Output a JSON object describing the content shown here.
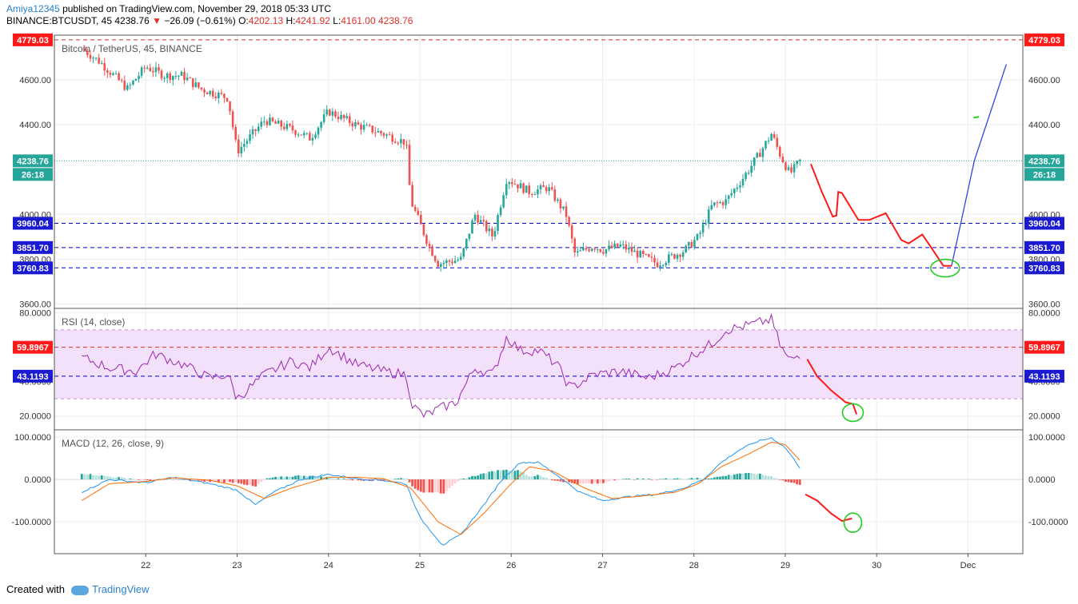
{
  "header": {
    "author": "Amiya12345",
    "published": "published on TradingView.com, November 29, 2018 05:33 UTC",
    "symbol_line": "BINANCE:BTCUSDT, 45",
    "price": "4238.76",
    "change": "−26.09 (−0.61%)",
    "o_label": "O:",
    "o_val": "4202.13",
    "h_label": "H:",
    "h_val": "4241.92",
    "l_label": "L:",
    "l_val": "4161.00",
    "c_val": "4238.76"
  },
  "footer": {
    "created_with": "Created with",
    "brand": "TradingView"
  },
  "colors": {
    "up": "#26a69a",
    "down": "#ef5350",
    "rsi": "#9c27b0",
    "macd": "#2196f3",
    "signal": "#ff6d00",
    "red_level": "#d32f2f",
    "blue_level": "#0000c8",
    "drawing_red": "#ff1a1a",
    "drawing_blue": "#3344dd",
    "drawing_green": "#22cc22"
  },
  "chart_data": [
    {
      "type": "candlestick",
      "title": "Bitcoin / TetherUS, 45, BINANCE",
      "ylim": [
        3580,
        4800
      ],
      "y_ticks": [
        3600,
        3800,
        4000,
        4400,
        4600
      ],
      "y_tick_labels": [
        "3600.00",
        "3800.00",
        "4000.00",
        "4400.00",
        "4600.00"
      ],
      "x_tick_labels": [
        "22",
        "23",
        "24",
        "25",
        "26",
        "27",
        "28",
        "29",
        "30",
        "Dec"
      ],
      "last_price_label": "4238.76",
      "countdown_label": "26:18",
      "levels": [
        {
          "value": 4779.03,
          "label": "4779.03",
          "color": "red"
        },
        {
          "value": 3960.04,
          "label": "3960.04",
          "color": "blue"
        },
        {
          "value": 3851.7,
          "label": "3851.70",
          "color": "blue"
        },
        {
          "value": 3760.83,
          "label": "3760.83",
          "color": "blue"
        }
      ],
      "waypoints": [
        [
          21.3,
          4740
        ],
        [
          21.5,
          4680
        ],
        [
          21.8,
          4560
        ],
        [
          22.0,
          4660
        ],
        [
          22.2,
          4620
        ],
        [
          22.4,
          4620
        ],
        [
          22.6,
          4560
        ],
        [
          22.9,
          4520
        ],
        [
          23.0,
          4280
        ],
        [
          23.3,
          4420
        ],
        [
          23.6,
          4380
        ],
        [
          23.8,
          4340
        ],
        [
          24.0,
          4460
        ],
        [
          24.3,
          4400
        ],
        [
          24.6,
          4360
        ],
        [
          24.85,
          4320
        ],
        [
          24.9,
          4060
        ],
        [
          25.1,
          3860
        ],
        [
          25.2,
          3780
        ],
        [
          25.45,
          3800
        ],
        [
          25.6,
          4000
        ],
        [
          25.8,
          3900
        ],
        [
          25.95,
          4160
        ],
        [
          26.2,
          4100
        ],
        [
          26.4,
          4120
        ],
        [
          26.6,
          4000
        ],
        [
          26.7,
          3820
        ],
        [
          26.9,
          3860
        ],
        [
          27.0,
          3840
        ],
        [
          27.2,
          3860
        ],
        [
          27.4,
          3820
        ],
        [
          27.6,
          3780
        ],
        [
          27.9,
          3840
        ],
        [
          28.05,
          3900
        ],
        [
          28.2,
          4040
        ],
        [
          28.35,
          4060
        ],
        [
          28.55,
          4170
        ],
        [
          28.7,
          4260
        ],
        [
          28.85,
          4360
        ],
        [
          28.95,
          4260
        ],
        [
          29.05,
          4180
        ],
        [
          29.16,
          4238
        ]
      ]
    },
    {
      "type": "line",
      "title": "RSI (14, close)",
      "ylim": [
        12,
        82
      ],
      "y_ticks": [
        20,
        40,
        80
      ],
      "y_tick_labels": [
        "20.0000",
        "40.0000",
        "80.0000"
      ],
      "band": [
        30,
        70
      ],
      "levels": [
        {
          "value": 59.8967,
          "label": "59.8967",
          "color": "red"
        },
        {
          "value": 43.1193,
          "label": "43.1193",
          "color": "blue"
        }
      ],
      "waypoints": [
        [
          21.3,
          54
        ],
        [
          21.6,
          48
        ],
        [
          21.9,
          46
        ],
        [
          22.1,
          56
        ],
        [
          22.4,
          50
        ],
        [
          22.7,
          42
        ],
        [
          22.9,
          44
        ],
        [
          23.0,
          30
        ],
        [
          23.3,
          44
        ],
        [
          23.6,
          52
        ],
        [
          23.8,
          48
        ],
        [
          24.0,
          60
        ],
        [
          24.3,
          50
        ],
        [
          24.6,
          46
        ],
        [
          24.85,
          44
        ],
        [
          24.92,
          26
        ],
        [
          25.05,
          20
        ],
        [
          25.2,
          24
        ],
        [
          25.4,
          28
        ],
        [
          25.6,
          48
        ],
        [
          25.8,
          44
        ],
        [
          25.95,
          66
        ],
        [
          26.1,
          58
        ],
        [
          26.3,
          58
        ],
        [
          26.5,
          50
        ],
        [
          26.65,
          36
        ],
        [
          26.9,
          44
        ],
        [
          27.2,
          46
        ],
        [
          27.5,
          42
        ],
        [
          27.8,
          48
        ],
        [
          28.0,
          56
        ],
        [
          28.2,
          62
        ],
        [
          28.35,
          70
        ],
        [
          28.55,
          72
        ],
        [
          28.7,
          74
        ],
        [
          28.85,
          76
        ],
        [
          28.95,
          60
        ],
        [
          29.05,
          52
        ],
        [
          29.16,
          56
        ]
      ]
    },
    {
      "type": "bar+line",
      "title": "MACD (12, 26, close, 9)",
      "ylim": [
        -175,
        115
      ],
      "y_ticks": [
        -100,
        0,
        100
      ],
      "y_tick_labels": [
        "-100.0000",
        "0.0000",
        "100.0000"
      ],
      "macd_waypoints": [
        [
          21.3,
          -30
        ],
        [
          21.6,
          0
        ],
        [
          22.0,
          -8
        ],
        [
          22.3,
          5
        ],
        [
          22.7,
          -10
        ],
        [
          23.0,
          -25
        ],
        [
          23.2,
          -60
        ],
        [
          23.4,
          -30
        ],
        [
          23.7,
          0
        ],
        [
          24.0,
          12
        ],
        [
          24.3,
          2
        ],
        [
          24.6,
          -2
        ],
        [
          24.85,
          -10
        ],
        [
          25.0,
          -90
        ],
        [
          25.25,
          -155
        ],
        [
          25.45,
          -130
        ],
        [
          25.7,
          -60
        ],
        [
          25.9,
          0
        ],
        [
          26.1,
          40
        ],
        [
          26.3,
          40
        ],
        [
          26.5,
          10
        ],
        [
          26.75,
          -30
        ],
        [
          27.0,
          -50
        ],
        [
          27.3,
          -40
        ],
        [
          27.6,
          -35
        ],
        [
          27.9,
          -20
        ],
        [
          28.1,
          0
        ],
        [
          28.3,
          40
        ],
        [
          28.5,
          70
        ],
        [
          28.7,
          90
        ],
        [
          28.85,
          98
        ],
        [
          29.0,
          75
        ],
        [
          29.16,
          28
        ]
      ],
      "signal_waypoints": [
        [
          21.3,
          -50
        ],
        [
          21.6,
          -10
        ],
        [
          22.0,
          -5
        ],
        [
          22.3,
          4
        ],
        [
          22.7,
          -2
        ],
        [
          23.0,
          -15
        ],
        [
          23.3,
          -45
        ],
        [
          23.6,
          -20
        ],
        [
          24.0,
          5
        ],
        [
          24.3,
          5
        ],
        [
          24.6,
          2
        ],
        [
          24.9,
          -20
        ],
        [
          25.2,
          -100
        ],
        [
          25.45,
          -130
        ],
        [
          25.7,
          -80
        ],
        [
          26.0,
          -10
        ],
        [
          26.2,
          30
        ],
        [
          26.45,
          20
        ],
        [
          26.8,
          -20
        ],
        [
          27.1,
          -45
        ],
        [
          27.4,
          -40
        ],
        [
          27.8,
          -30
        ],
        [
          28.05,
          -10
        ],
        [
          28.3,
          30
        ],
        [
          28.6,
          60
        ],
        [
          28.85,
          88
        ],
        [
          29.0,
          82
        ],
        [
          29.16,
          45
        ]
      ]
    }
  ],
  "drawings": {
    "price_red": [
      [
        29.28,
        4225
      ],
      [
        29.4,
        4100
      ],
      [
        29.52,
        3990
      ],
      [
        29.56,
        3995
      ],
      [
        29.58,
        4100
      ],
      [
        29.62,
        4095
      ],
      [
        29.8,
        3975
      ],
      [
        29.92,
        3975
      ],
      [
        30.1,
        4005
      ],
      [
        30.27,
        3885
      ],
      [
        30.35,
        3870
      ],
      [
        30.5,
        3910
      ],
      [
        30.6,
        3850
      ],
      [
        30.73,
        3770
      ],
      [
        30.82,
        3770
      ]
    ],
    "price_blue": [
      [
        30.82,
        3770
      ],
      [
        31.07,
        4240
      ],
      [
        31.42,
        4670
      ]
    ],
    "price_green_circle": {
      "x": 30.75,
      "y": 3760
    },
    "price_green_tick": [
      [
        31.06,
        4432
      ],
      [
        31.12,
        4435
      ]
    ],
    "rsi_red": [
      [
        29.24,
        53
      ],
      [
        29.35,
        43
      ],
      [
        29.5,
        35
      ],
      [
        29.66,
        28
      ],
      [
        29.74,
        27
      ],
      [
        29.78,
        21
      ]
    ],
    "rsi_green_circle": {
      "x": 29.74,
      "y": 22
    },
    "macd_red": [
      [
        29.22,
        -35
      ],
      [
        29.35,
        -50
      ],
      [
        29.5,
        -80
      ],
      [
        29.62,
        -98
      ],
      [
        29.73,
        -92
      ]
    ],
    "macd_green_circle": {
      "x": 29.74,
      "y": -102
    }
  }
}
